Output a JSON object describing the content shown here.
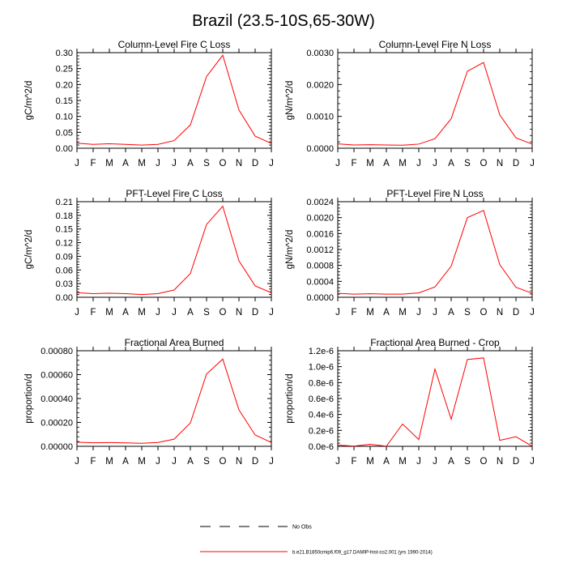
{
  "main_title": "Brazil (23.5-10S,65-30W)",
  "months": [
    "J",
    "F",
    "M",
    "A",
    "M",
    "J",
    "J",
    "A",
    "S",
    "O",
    "N",
    "D",
    "J"
  ],
  "legend": {
    "no_obs_label": "No Obs",
    "model_label": "b.e21.B1850cmip6.f09_g17.DAMIP-hist-co2.001 (yrs 1990-2014)",
    "model_color": "#ff0000",
    "obs_color": "#000000"
  },
  "chart_data": [
    {
      "type": "line",
      "title": "Column-Level Fire C Loss",
      "ylabel": "gC/m^2/d",
      "ylim": [
        0,
        0.3
      ],
      "yticks": [
        "0.00",
        "0.05",
        "0.10",
        "0.15",
        "0.20",
        "0.25",
        "0.30"
      ],
      "categories": [
        "J",
        "F",
        "M",
        "A",
        "M",
        "J",
        "J",
        "A",
        "S",
        "O",
        "N",
        "D",
        "J"
      ],
      "series": [
        {
          "values": [
            0.016,
            0.012,
            0.014,
            0.012,
            0.01,
            0.012,
            0.024,
            0.073,
            0.225,
            0.292,
            0.12,
            0.038,
            0.015
          ]
        }
      ]
    },
    {
      "type": "line",
      "title": "Column-Level Fire N Loss",
      "ylabel": "gN/m^2/d",
      "ylim": [
        0,
        0.0035
      ],
      "yticks": [
        "0.0000",
        "0.0010",
        "0.0020",
        "0.0030"
      ],
      "categories": [
        "J",
        "F",
        "M",
        "A",
        "M",
        "J",
        "J",
        "A",
        "S",
        "O",
        "N",
        "D",
        "J"
      ],
      "series": [
        {
          "values": [
            0.00016,
            0.00012,
            0.00013,
            0.00012,
            0.00011,
            0.00015,
            0.00035,
            0.00108,
            0.00282,
            0.00314,
            0.00122,
            0.00038,
            0.00015
          ]
        }
      ]
    },
    {
      "type": "line",
      "title": "PFT-Level Fire C Loss",
      "ylabel": "gC/m^2/d",
      "ylim": [
        0,
        0.21
      ],
      "yticks": [
        "0.00",
        "0.03",
        "0.06",
        "0.09",
        "0.12",
        "0.15",
        "0.18",
        "0.21"
      ],
      "categories": [
        "J",
        "F",
        "M",
        "A",
        "M",
        "J",
        "J",
        "A",
        "S",
        "O",
        "N",
        "D",
        "J"
      ],
      "series": [
        {
          "values": [
            0.01,
            0.008,
            0.009,
            0.008,
            0.006,
            0.008,
            0.016,
            0.052,
            0.16,
            0.2,
            0.08,
            0.025,
            0.01
          ]
        }
      ]
    },
    {
      "type": "line",
      "title": "PFT-Level Fire N Loss",
      "ylabel": "gN/m^2/d",
      "ylim": [
        0,
        0.0024
      ],
      "yticks": [
        "0.0000",
        "0.0004",
        "0.0008",
        "0.0012",
        "0.0016",
        "0.0020",
        "0.0024"
      ],
      "categories": [
        "J",
        "F",
        "M",
        "A",
        "M",
        "J",
        "J",
        "A",
        "S",
        "O",
        "N",
        "D",
        "J"
      ],
      "series": [
        {
          "values": [
            0.0001,
            8e-05,
            9e-05,
            8e-05,
            8e-05,
            0.00011,
            0.00026,
            0.00078,
            0.002,
            0.00218,
            0.00082,
            0.00025,
            0.0001
          ]
        }
      ]
    },
    {
      "type": "line",
      "title": "Fractional Area Burned",
      "ylabel": "proportion/d",
      "ylim": [
        0,
        0.0008
      ],
      "yticks": [
        "0.00000",
        "0.00020",
        "0.00040",
        "0.00060",
        "0.00080"
      ],
      "categories": [
        "J",
        "F",
        "M",
        "A",
        "M",
        "J",
        "J",
        "A",
        "S",
        "O",
        "N",
        "D",
        "J"
      ],
      "series": [
        {
          "values": [
            3.5e-05,
            3e-05,
            3.1e-05,
            2.9e-05,
            2.5e-05,
            3.2e-05,
            6e-05,
            0.000195,
            0.000605,
            0.00073,
            0.000305,
            9.5e-05,
            3.2e-05
          ]
        }
      ]
    },
    {
      "type": "line",
      "title": "Fractional Area Burned - Crop",
      "ylabel": "proportion/d",
      "ylim": [
        0,
        1.2e-06
      ],
      "yticks": [
        "0.0e-6",
        "0.2e-6",
        "0.4e-6",
        "0.6e-6",
        "0.8e-6",
        "1.0e-6",
        "1.2e-6"
      ],
      "categories": [
        "J",
        "F",
        "M",
        "A",
        "M",
        "J",
        "J",
        "A",
        "S",
        "O",
        "N",
        "D",
        "J"
      ],
      "series": [
        {
          "values": [
            1.5e-08,
            3e-09,
            2.5e-08,
            1e-09,
            2.8e-07,
            8.5e-08,
            9.7e-07,
            3.4e-07,
            1.09e-06,
            1.11e-06,
            7.5e-08,
            1.2e-07,
            1e-09
          ]
        }
      ]
    }
  ]
}
